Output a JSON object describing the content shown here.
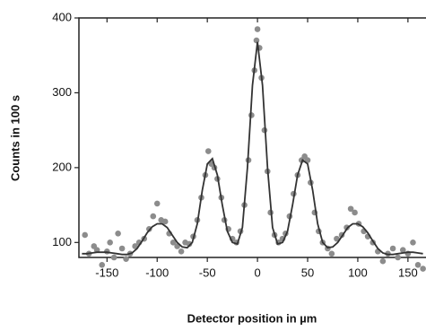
{
  "chart_data": {
    "type": "scatter",
    "xlabel": "Detector position in µm",
    "ylabel": "Counts in 100 s",
    "xlim": [
      -178,
      168
    ],
    "ylim": [
      80,
      400
    ],
    "xticks": [
      -150,
      -100,
      -50,
      0,
      50,
      100,
      150
    ],
    "yticks": [
      100,
      200,
      300,
      400
    ],
    "series": [
      {
        "style": "markers",
        "color": "#8c8c8c",
        "x": [
          -172,
          -168,
          -163,
          -160,
          -155,
          -150,
          -147,
          -143,
          -139,
          -135,
          -131,
          -127,
          -122,
          -118,
          -113,
          -108,
          -104,
          -100,
          -96,
          -92,
          -88,
          -84,
          -80,
          -76,
          -72,
          -68,
          -64,
          -60,
          -56,
          -52,
          -49,
          -46,
          -43,
          -40,
          -36,
          -33,
          -29,
          -25,
          -21,
          -17,
          -13,
          -9,
          -6,
          -3,
          -1,
          0,
          2,
          4,
          7,
          10,
          13,
          17,
          21,
          25,
          28,
          32,
          36,
          40,
          44,
          47,
          50,
          53,
          57,
          61,
          65,
          70,
          74,
          79,
          84,
          89,
          93,
          97,
          101,
          106,
          110,
          115,
          120,
          125,
          130,
          135,
          140,
          145,
          150,
          155,
          160,
          165
        ],
        "values": [
          110,
          85,
          95,
          90,
          70,
          88,
          100,
          80,
          112,
          92,
          78,
          85,
          95,
          100,
          105,
          118,
          135,
          152,
          130,
          128,
          112,
          100,
          95,
          88,
          100,
          98,
          108,
          130,
          160,
          190,
          222,
          205,
          200,
          185,
          160,
          130,
          118,
          105,
          100,
          115,
          150,
          210,
          270,
          330,
          370,
          385,
          360,
          320,
          250,
          195,
          140,
          110,
          100,
          105,
          112,
          135,
          165,
          190,
          210,
          215,
          210,
          180,
          140,
          115,
          100,
          92,
          85,
          105,
          110,
          120,
          145,
          140,
          125,
          115,
          108,
          100,
          88,
          75,
          85,
          92,
          80,
          90,
          85,
          100,
          70,
          65
        ]
      },
      {
        "style": "line",
        "color": "#333333",
        "x": [
          -175,
          -170,
          -165,
          -160,
          -155,
          -150,
          -145,
          -140,
          -135,
          -130,
          -125,
          -120,
          -115,
          -110,
          -105,
          -100,
          -95,
          -90,
          -85,
          -80,
          -75,
          -70,
          -65,
          -60,
          -55,
          -50,
          -45,
          -40,
          -35,
          -30,
          -25,
          -20,
          -15,
          -10,
          -5,
          0,
          5,
          10,
          15,
          20,
          25,
          30,
          35,
          40,
          45,
          50,
          55,
          60,
          65,
          70,
          75,
          80,
          85,
          90,
          95,
          100,
          105,
          110,
          115,
          120,
          125,
          130,
          135,
          140,
          145,
          150,
          155,
          160,
          165
        ],
        "values": [
          85,
          85,
          86,
          87,
          87,
          87,
          86,
          85,
          84,
          84,
          86,
          92,
          102,
          113,
          121,
          125,
          125,
          120,
          110,
          100,
          94,
          93,
          100,
          125,
          170,
          205,
          212,
          190,
          150,
          115,
          100,
          98,
          120,
          200,
          310,
          368,
          310,
          200,
          120,
          98,
          100,
          115,
          150,
          190,
          210,
          205,
          170,
          125,
          100,
          93,
          94,
          100,
          110,
          120,
          125,
          125,
          121,
          113,
          102,
          92,
          86,
          84,
          84,
          85,
          86,
          87,
          87,
          86,
          85
        ]
      }
    ]
  }
}
